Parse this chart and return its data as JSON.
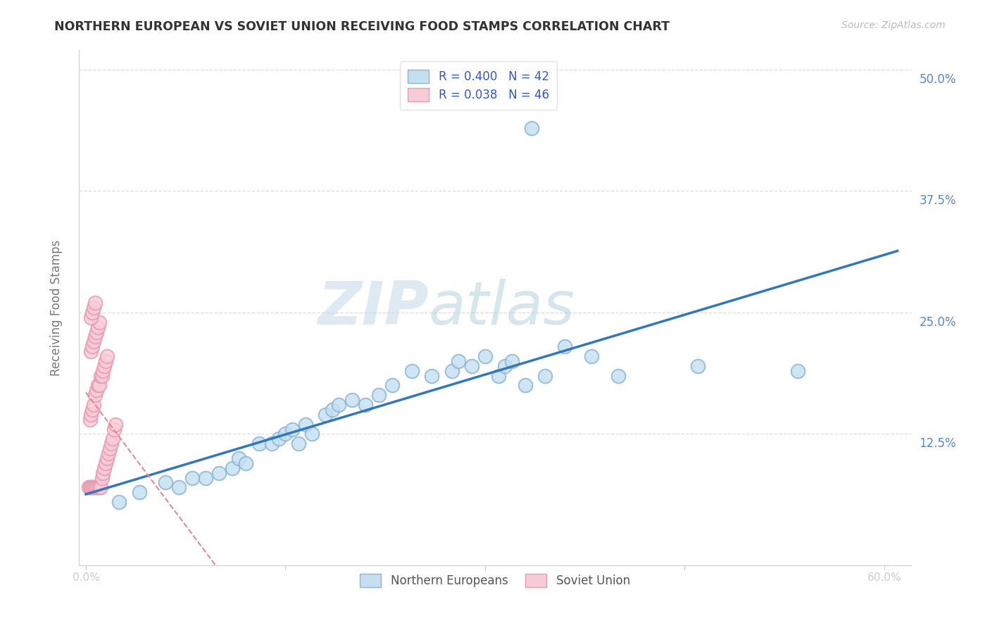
{
  "title": "NORTHERN EUROPEAN VS SOVIET UNION RECEIVING FOOD STAMPS CORRELATION CHART",
  "source": "Source: ZipAtlas.com",
  "ylabel": "Receiving Food Stamps",
  "xlim": [
    -0.005,
    0.62
  ],
  "ylim": [
    -0.01,
    0.52
  ],
  "xticks": [
    0.0,
    0.15,
    0.3,
    0.45,
    0.6
  ],
  "yticks": [
    0.0,
    0.125,
    0.25,
    0.375,
    0.5
  ],
  "ytick_labels": [
    "",
    "12.5%",
    "25.0%",
    "37.5%",
    "50.0%"
  ],
  "xtick_labels": [
    "0.0%",
    "",
    "",
    "",
    "60.0%"
  ],
  "legend_line1": "R = 0.400   N = 42",
  "legend_line2": "R = 0.038   N = 46",
  "legend_label_blue": "Northern Europeans",
  "legend_label_pink": "Soviet Union",
  "blue_face_color": "#c5dff0",
  "blue_edge_color": "#8ab4d4",
  "pink_face_color": "#f7ccd8",
  "pink_edge_color": "#e899b0",
  "blue_line_color": "#3377bb",
  "pink_line_color": "#e08898",
  "watermark_color": "#d0e4f0",
  "background_color": "#ffffff",
  "grid_color": "#dddddd",
  "title_color": "#333333",
  "tick_label_color": "#aaaaaa",
  "right_tick_color": "#5588cc",
  "ylabel_color": "#777777",
  "blue_x": [
    0.025,
    0.04,
    0.06,
    0.07,
    0.08,
    0.09,
    0.1,
    0.11,
    0.115,
    0.12,
    0.13,
    0.14,
    0.145,
    0.15,
    0.155,
    0.16,
    0.165,
    0.17,
    0.18,
    0.185,
    0.19,
    0.2,
    0.21,
    0.22,
    0.23,
    0.245,
    0.26,
    0.275,
    0.28,
    0.29,
    0.3,
    0.31,
    0.315,
    0.32,
    0.33,
    0.345,
    0.36,
    0.38,
    0.4,
    0.46,
    0.535,
    0.335
  ],
  "blue_y": [
    0.055,
    0.065,
    0.075,
    0.07,
    0.08,
    0.08,
    0.085,
    0.09,
    0.1,
    0.095,
    0.115,
    0.115,
    0.12,
    0.125,
    0.13,
    0.115,
    0.135,
    0.125,
    0.145,
    0.15,
    0.155,
    0.16,
    0.155,
    0.165,
    0.175,
    0.19,
    0.185,
    0.19,
    0.2,
    0.195,
    0.205,
    0.185,
    0.195,
    0.2,
    0.175,
    0.185,
    0.215,
    0.205,
    0.185,
    0.195,
    0.19,
    0.44
  ],
  "pink_x": [
    0.002,
    0.003,
    0.004,
    0.005,
    0.006,
    0.007,
    0.008,
    0.009,
    0.01,
    0.011,
    0.012,
    0.013,
    0.014,
    0.015,
    0.016,
    0.017,
    0.018,
    0.019,
    0.02,
    0.021,
    0.022,
    0.003,
    0.004,
    0.005,
    0.006,
    0.007,
    0.008,
    0.009,
    0.01,
    0.011,
    0.012,
    0.013,
    0.014,
    0.015,
    0.016,
    0.004,
    0.005,
    0.006,
    0.007,
    0.008,
    0.009,
    0.01,
    0.004,
    0.005,
    0.006,
    0.007
  ],
  "pink_y": [
    0.07,
    0.07,
    0.07,
    0.07,
    0.07,
    0.07,
    0.07,
    0.07,
    0.07,
    0.07,
    0.08,
    0.085,
    0.09,
    0.095,
    0.1,
    0.105,
    0.11,
    0.115,
    0.12,
    0.13,
    0.135,
    0.14,
    0.145,
    0.15,
    0.155,
    0.165,
    0.17,
    0.175,
    0.175,
    0.185,
    0.185,
    0.19,
    0.195,
    0.2,
    0.205,
    0.21,
    0.215,
    0.22,
    0.225,
    0.23,
    0.235,
    0.24,
    0.245,
    0.25,
    0.255,
    0.26
  ]
}
